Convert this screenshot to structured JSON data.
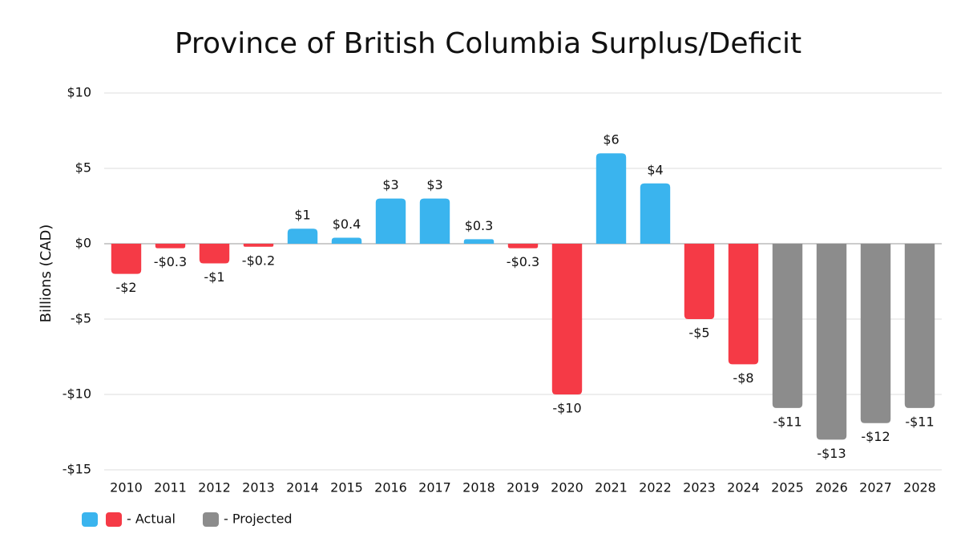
{
  "chart_data": {
    "type": "bar",
    "title": "Province of British Columbia Surplus/Deficit",
    "y_label": "Billions (CAD)",
    "categories": [
      "2010",
      "2011",
      "2012",
      "2013",
      "2014",
      "2015",
      "2016",
      "2017",
      "2018",
      "2019",
      "2020",
      "2021",
      "2022",
      "2023",
      "2024",
      "2025",
      "2026",
      "2027",
      "2028"
    ],
    "values": [
      -2,
      -0.3,
      -1.3,
      -0.2,
      1,
      0.4,
      3,
      3,
      0.3,
      -0.3,
      -10,
      6,
      4,
      -5,
      -8,
      -10.9,
      -13,
      -11.9,
      -10.9
    ],
    "value_labels": [
      "-$2",
      "-$0.3",
      "-$1",
      "-$0.2",
      "$1",
      "$0.4",
      "$3",
      "$3",
      "$0.3",
      "-$0.3",
      "-$10",
      "$6",
      "$4",
      "-$5",
      "-$8",
      "-$11",
      "-$13",
      "-$12",
      "-$11"
    ],
    "colors": [
      "#f53a46",
      "#f53a46",
      "#f53a46",
      "#f53a46",
      "#3ab4ee",
      "#3ab4ee",
      "#3ab4ee",
      "#3ab4ee",
      "#3ab4ee",
      "#f53a46",
      "#f53a46",
      "#3ab4ee",
      "#3ab4ee",
      "#f53a46",
      "#f53a46",
      "#8c8c8c",
      "#8c8c8c",
      "#8c8c8c",
      "#8c8c8c"
    ],
    "ylim": [
      -15,
      10
    ],
    "yticks": [
      {
        "value": 10,
        "label": "$10"
      },
      {
        "value": 5,
        "label": "$5"
      },
      {
        "value": 0,
        "label": "$0"
      },
      {
        "value": -5,
        "label": "-$5"
      },
      {
        "value": -10,
        "label": "-$10"
      },
      {
        "value": -15,
        "label": "-$15"
      }
    ],
    "grid": true,
    "legend": [
      {
        "label": "- Actual",
        "colors": [
          "#3ab4ee",
          "#f53a46"
        ]
      },
      {
        "label": "- Projected",
        "colors": [
          "#8c8c8c"
        ]
      }
    ]
  }
}
